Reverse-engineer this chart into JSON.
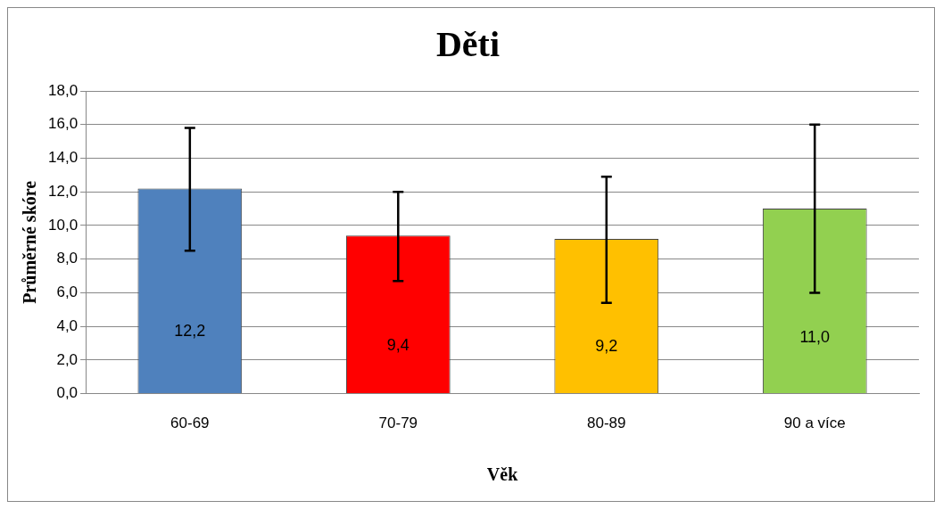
{
  "chart_data": {
    "type": "bar",
    "title": "Děti",
    "xlabel": "Věk",
    "ylabel": "Průměrné skóre",
    "categories": [
      "60-69",
      "70-79",
      "80-89",
      "90 a více"
    ],
    "values": [
      12.2,
      9.4,
      9.2,
      11.0
    ],
    "colors": [
      "#4f81bd",
      "#ff0000",
      "#ffc000",
      "#92d050"
    ],
    "errors": [
      [
        8.5,
        15.8
      ],
      [
        6.7,
        12.0
      ],
      [
        5.4,
        12.9
      ],
      [
        6.0,
        16.0
      ]
    ],
    "value_labels": [
      "12,2",
      "9,4",
      "9,2",
      "11,0"
    ],
    "ylim": [
      0,
      18
    ],
    "yticks": [
      {
        "value": 0,
        "label": "0,0"
      },
      {
        "value": 2,
        "label": "2,0"
      },
      {
        "value": 4,
        "label": "4,0"
      },
      {
        "value": 6,
        "label": "6,0"
      },
      {
        "value": 8,
        "label": "8,0"
      },
      {
        "value": 10,
        "label": "10,0"
      },
      {
        "value": 12,
        "label": "12,0"
      },
      {
        "value": 14,
        "label": "14,0"
      },
      {
        "value": 16,
        "label": "16,0"
      },
      {
        "value": 18,
        "label": "18,0"
      }
    ],
    "grid": "y",
    "legend": false
  }
}
